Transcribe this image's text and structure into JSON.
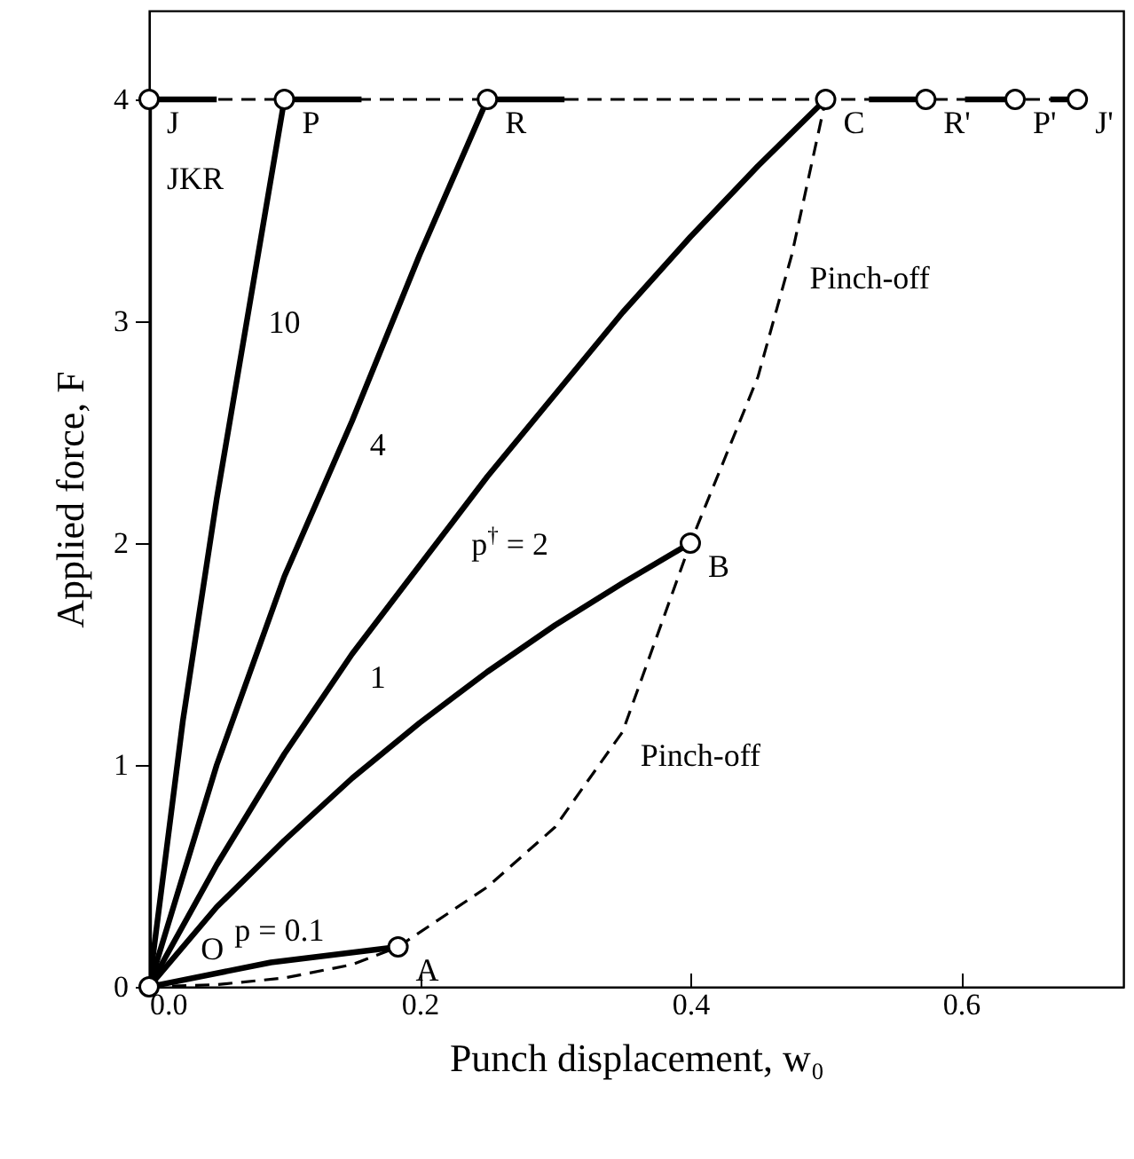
{
  "chart_data": {
    "type": "line",
    "xlabel": "Punch displacement, w₀",
    "ylabel": "Applied force, F",
    "xlim": [
      0,
      0.72
    ],
    "ylim": [
      0,
      4.4
    ],
    "xticks": [
      {
        "value": 0,
        "label": "0.0"
      },
      {
        "value": 0.2,
        "label": "0.2"
      },
      {
        "value": 0.4,
        "label": "0.4"
      },
      {
        "value": 0.6,
        "label": "0.6"
      }
    ],
    "yticks": [
      0,
      1,
      2,
      3,
      4
    ],
    "grid": false,
    "series": [
      {
        "color": "#000000",
        "line_style": "solid",
        "x": [
          0,
          0
        ],
        "values": [
          0,
          4
        ]
      },
      {
        "color": "#000000",
        "line_style": "solid",
        "x": [
          0,
          0.025,
          0.05,
          0.075,
          0.1
        ],
        "values": [
          0,
          1.2,
          2.2,
          3.1,
          4
        ]
      },
      {
        "color": "#000000",
        "line_style": "solid",
        "x": [
          0,
          0.05,
          0.1,
          0.15,
          0.2,
          0.25
        ],
        "values": [
          0,
          1.0,
          1.85,
          2.55,
          3.3,
          4
        ]
      },
      {
        "color": "#000000",
        "line_style": "solid",
        "x": [
          0,
          0.05,
          0.1,
          0.15,
          0.2,
          0.25,
          0.3,
          0.35,
          0.4,
          0.45,
          0.5
        ],
        "values": [
          0,
          0.55,
          1.05,
          1.5,
          1.9,
          2.3,
          2.67,
          3.04,
          3.38,
          3.7,
          4
        ]
      },
      {
        "color": "#000000",
        "line_style": "solid",
        "x": [
          0,
          0.05,
          0.1,
          0.15,
          0.2,
          0.25,
          0.3,
          0.35,
          0.4
        ],
        "values": [
          0,
          0.36,
          0.66,
          0.94,
          1.19,
          1.42,
          1.63,
          1.82,
          2
        ]
      },
      {
        "color": "#000000",
        "line_style": "solid",
        "x": [
          0,
          0.09,
          0.184
        ],
        "values": [
          0,
          0.11,
          0.18
        ]
      },
      {
        "color": "#000000",
        "line_style": "dashed",
        "x": [
          0,
          0.05,
          0.1,
          0.15,
          0.184,
          0.25,
          0.3,
          0.35,
          0.4,
          0.45,
          0.475,
          0.5
        ],
        "values": [
          0,
          0.01,
          0.04,
          0.1,
          0.18,
          0.45,
          0.72,
          1.15,
          2,
          2.75,
          3.3,
          4
        ]
      },
      {
        "color": "#000000",
        "line_style": "dashed",
        "x": [
          0,
          0.686
        ],
        "values": [
          4,
          4
        ]
      },
      {
        "color": "#000000",
        "line_style": "solid",
        "x": [
          0,
          0.05,
          0.075,
          0.1,
          0.157,
          0.2,
          0.25,
          0.307,
          0.4,
          0.532,
          0.574,
          0.59,
          0.603,
          0.64,
          0.65,
          0.666,
          0.686
        ],
        "values": [
          4,
          4,
          null,
          4,
          4,
          null,
          4,
          4,
          null,
          4,
          4,
          null,
          4,
          4,
          null,
          4,
          4
        ]
      },
      {
        "type": "scatter",
        "marker": "circle",
        "color": "#000000",
        "x": [
          0,
          0.1,
          0.25,
          0.5,
          0.574,
          0.64,
          0.686,
          0.4,
          0.184,
          0
        ],
        "values": [
          4,
          4,
          4,
          4,
          4,
          4,
          4,
          2,
          0.18,
          0
        ]
      }
    ],
    "annotations": [
      {
        "text": "J",
        "x": 0,
        "y": 4
      },
      {
        "text": "P",
        "x": 0.1,
        "y": 4
      },
      {
        "text": "R",
        "x": 0.25,
        "y": 4
      },
      {
        "text": "C",
        "x": 0.5,
        "y": 4
      },
      {
        "text": "R'",
        "x": 0.574,
        "y": 4
      },
      {
        "text": "P'",
        "x": 0.64,
        "y": 4
      },
      {
        "text": "J'",
        "x": 0.686,
        "y": 4
      },
      {
        "text": "JKR",
        "x": 0,
        "y": 3.75
      },
      {
        "text": "Pinch-off",
        "x": 0.475,
        "y": 3.3
      },
      {
        "text": "10",
        "x": 0.075,
        "y": 3.1
      },
      {
        "text": "4",
        "x": 0.15,
        "y": 2.55
      },
      {
        "text": "p$^{†}$ = 2",
        "x": 0.225,
        "y": 2.1
      },
      {
        "text": "B",
        "x": 0.4,
        "y": 2
      },
      {
        "text": "1",
        "x": 0.15,
        "y": 1.5
      },
      {
        "text": "Pinch-off",
        "x": 0.35,
        "y": 1.15
      },
      {
        "text": "p = 0.1",
        "x": 0.05,
        "y": 0.36
      },
      {
        "text": "A",
        "x": 0.184,
        "y": 0.18
      },
      {
        "text": "O",
        "x": 0.025,
        "y": 0.275
      }
    ]
  }
}
